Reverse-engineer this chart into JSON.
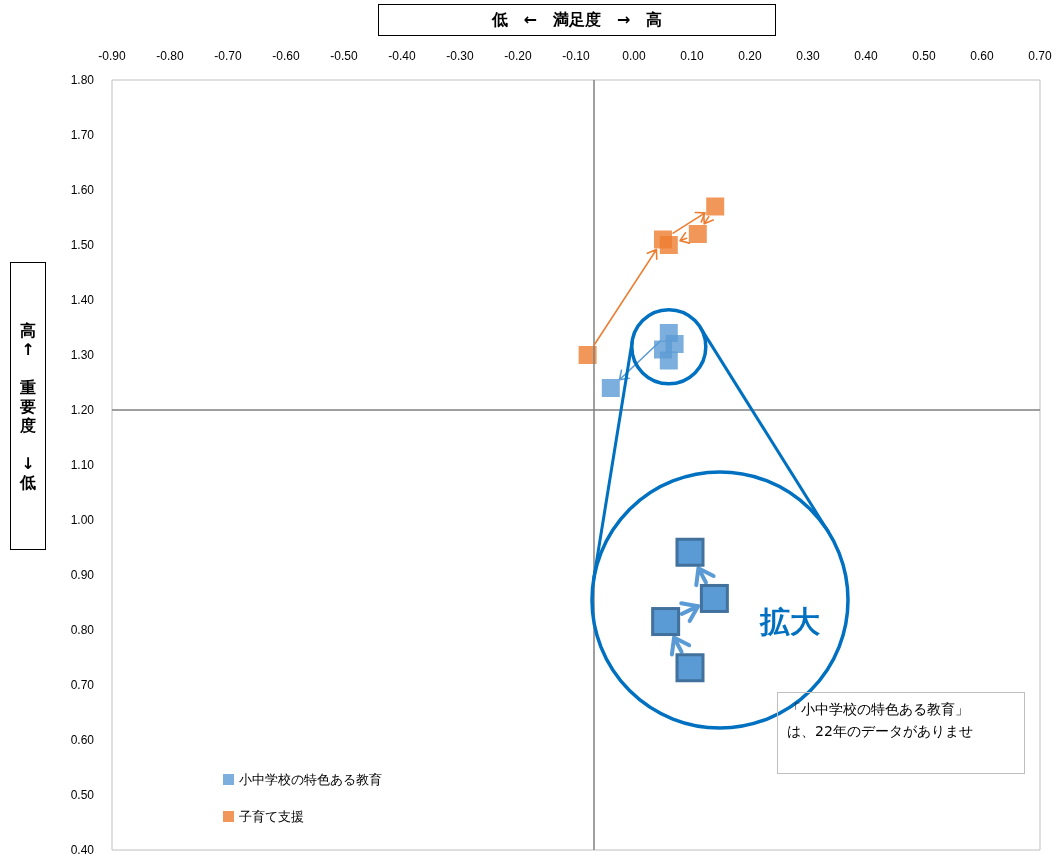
{
  "chart_data": {
    "type": "scatter",
    "xlabel": "低　←　満足度　→　高",
    "ylabel": "高↑　重要度　↓低",
    "series": [
      {
        "name": "小中学校の特色ある教育",
        "color": "#5b9bd5",
        "x": [
          0.06,
          0.05,
          0.07,
          0.06,
          -0.04
        ],
        "values": [
          1.29,
          1.31,
          1.32,
          1.34,
          1.24
        ]
      },
      {
        "name": "子育て支援",
        "color": "#ed7d31",
        "x": [
          -0.08,
          0.05,
          0.14,
          0.11,
          0.06
        ],
        "values": [
          1.3,
          1.51,
          1.57,
          1.52,
          1.5
        ]
      }
    ],
    "xlim": [
      -0.9,
      0.7
    ],
    "xticks": [
      {
        "value": -0.9,
        "label": "-0.90"
      },
      {
        "value": -0.8,
        "label": "-0.80"
      },
      {
        "value": -0.7,
        "label": "-0.70"
      },
      {
        "value": -0.6,
        "label": "-0.60"
      },
      {
        "value": -0.5,
        "label": "-0.50"
      },
      {
        "value": -0.4,
        "label": "-0.40"
      },
      {
        "value": -0.3,
        "label": "-0.30"
      },
      {
        "value": -0.2,
        "label": "-0.20"
      },
      {
        "value": -0.1,
        "label": "-0.10"
      },
      {
        "value": 0,
        "label": "0.00"
      },
      {
        "value": 0.1,
        "label": "0.10"
      },
      {
        "value": 0.2,
        "label": "0.20"
      },
      {
        "value": 0.3,
        "label": "0.30"
      },
      {
        "value": 0.4,
        "label": "0.40"
      },
      {
        "value": 0.5,
        "label": "0.50"
      },
      {
        "value": 0.6,
        "label": "0.60"
      },
      {
        "value": 0.7,
        "label": "0.70"
      }
    ],
    "ylim": [
      0.4,
      1.8
    ],
    "yticks": [
      {
        "value": 0.4,
        "label": "0.40"
      },
      {
        "value": 0.5,
        "label": "0.50"
      },
      {
        "value": 0.6,
        "label": "0.60"
      },
      {
        "value": 0.7,
        "label": "0.70"
      },
      {
        "value": 0.8,
        "label": "0.80"
      },
      {
        "value": 0.9,
        "label": "0.90"
      },
      {
        "value": 1.0,
        "label": "1.00"
      },
      {
        "value": 1.1,
        "label": "1.10"
      },
      {
        "value": 1.2,
        "label": "1.20"
      },
      {
        "value": 1.3,
        "label": "1.30"
      },
      {
        "value": 1.4,
        "label": "1.40"
      },
      {
        "value": 1.5,
        "label": "1.50"
      },
      {
        "value": 1.6,
        "label": "1.60"
      },
      {
        "value": 1.7,
        "label": "1.70"
      },
      {
        "value": 1.8,
        "label": "1.80"
      }
    ],
    "ref_lines": [
      {
        "axis": "x",
        "value": -0.07,
        "color": "#808080"
      },
      {
        "axis": "y",
        "value": 1.2,
        "color": "#808080"
      }
    ],
    "marker": "square",
    "legend": "bottom left",
    "annotations": [
      "拡大",
      "「小中学校の特色ある教育」は、22年のデータがありませ"
    ]
  }
}
